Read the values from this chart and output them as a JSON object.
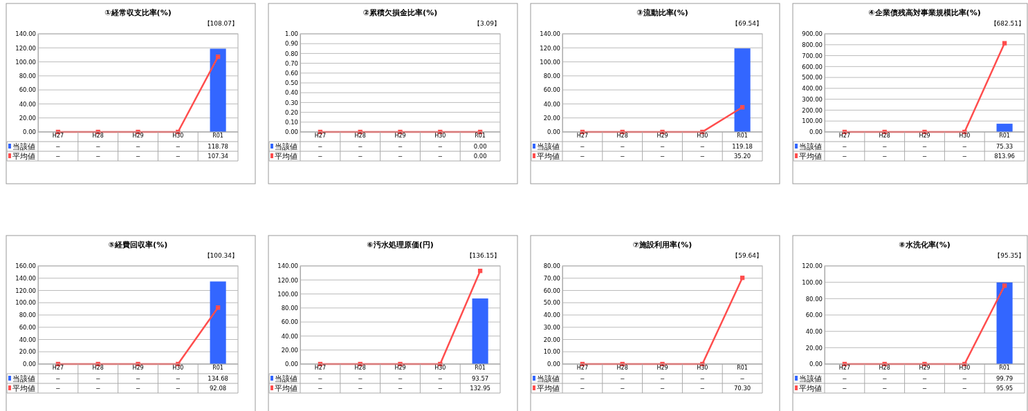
{
  "chart_data": [
    {
      "type": "bar",
      "legend": "bottom left",
      "title": "①経常収支比率(%)",
      "annotations": [
        "【108.07】"
      ],
      "categories": [
        "H27",
        "H28",
        "H29",
        "H30",
        "R01"
      ],
      "ylim": [
        0,
        140
      ],
      "yticks": [
        {
          "value": 0,
          "label": "0.00"
        },
        {
          "value": 20,
          "label": "20.00"
        },
        {
          "value": 40,
          "label": "40.00"
        },
        {
          "value": 60,
          "label": "60.00"
        },
        {
          "value": 80,
          "label": "80.00"
        },
        {
          "value": 100,
          "label": "100.00"
        },
        {
          "value": 120,
          "label": "120.00"
        },
        {
          "value": 140,
          "label": "140.00"
        }
      ],
      "grid": "y",
      "series": [
        {
          "name": "当該値",
          "type": "bar",
          "color": "#3366ff",
          "values": [
            null,
            null,
            null,
            null,
            118.78
          ],
          "value_labels": [
            "−",
            "−",
            "−",
            "−",
            "118.78"
          ]
        },
        {
          "name": "平均値",
          "type": "line",
          "color": "#ff4d4d",
          "marker": "square",
          "values": [
            0,
            0,
            0,
            0,
            107.34
          ],
          "value_labels": [
            "−",
            "−",
            "−",
            "−",
            "107.34"
          ]
        }
      ]
    },
    {
      "type": "bar",
      "legend": "bottom left",
      "title": "②累積欠損金比率(%)",
      "annotations": [
        "【3.09】"
      ],
      "categories": [
        "H27",
        "H28",
        "H29",
        "H30",
        "R01"
      ],
      "ylim": [
        0,
        1
      ],
      "yticks": [
        {
          "value": 0,
          "label": "0.00"
        },
        {
          "value": 0.1,
          "label": "0.10"
        },
        {
          "value": 0.2,
          "label": "0.20"
        },
        {
          "value": 0.3,
          "label": "0.30"
        },
        {
          "value": 0.4,
          "label": "0.40"
        },
        {
          "value": 0.5,
          "label": "0.50"
        },
        {
          "value": 0.6,
          "label": "0.60"
        },
        {
          "value": 0.7,
          "label": "0.70"
        },
        {
          "value": 0.8,
          "label": "0.80"
        },
        {
          "value": 0.9,
          "label": "0.90"
        },
        {
          "value": 1,
          "label": "1.00"
        }
      ],
      "grid": "y",
      "series": [
        {
          "name": "当該値",
          "type": "bar",
          "color": "#3366ff",
          "values": [
            null,
            null,
            null,
            null,
            0
          ],
          "value_labels": [
            "−",
            "−",
            "−",
            "−",
            "0.00"
          ]
        },
        {
          "name": "平均値",
          "type": "line",
          "color": "#ff4d4d",
          "marker": "square",
          "values": [
            0,
            0,
            0,
            0,
            0
          ],
          "value_labels": [
            "−",
            "−",
            "−",
            "−",
            "0.00"
          ]
        }
      ]
    },
    {
      "type": "bar",
      "legend": "bottom left",
      "title": "③流動比率(%)",
      "annotations": [
        "【69.54】"
      ],
      "categories": [
        "H27",
        "H28",
        "H29",
        "H30",
        "R01"
      ],
      "ylim": [
        0,
        140
      ],
      "yticks": [
        {
          "value": 0,
          "label": "0.00"
        },
        {
          "value": 20,
          "label": "20.00"
        },
        {
          "value": 40,
          "label": "40.00"
        },
        {
          "value": 60,
          "label": "60.00"
        },
        {
          "value": 80,
          "label": "80.00"
        },
        {
          "value": 100,
          "label": "100.00"
        },
        {
          "value": 120,
          "label": "120.00"
        },
        {
          "value": 140,
          "label": "140.00"
        }
      ],
      "grid": "y",
      "series": [
        {
          "name": "当該値",
          "type": "bar",
          "color": "#3366ff",
          "values": [
            null,
            null,
            null,
            null,
            119.18
          ],
          "value_labels": [
            "−",
            "−",
            "−",
            "−",
            "119.18"
          ]
        },
        {
          "name": "平均値",
          "type": "line",
          "color": "#ff4d4d",
          "marker": "square",
          "values": [
            0,
            0,
            0,
            0,
            35.2
          ],
          "value_labels": [
            "−",
            "−",
            "−",
            "−",
            "35.20"
          ]
        }
      ]
    },
    {
      "type": "bar",
      "legend": "bottom left",
      "title": "④企業債残高対事業規模比率(%)",
      "annotations": [
        "【682.51】"
      ],
      "categories": [
        "H27",
        "H28",
        "H29",
        "H30",
        "R01"
      ],
      "ylim": [
        0,
        900
      ],
      "yticks": [
        {
          "value": 0,
          "label": "0.00"
        },
        {
          "value": 100,
          "label": "100.00"
        },
        {
          "value": 200,
          "label": "200.00"
        },
        {
          "value": 300,
          "label": "300.00"
        },
        {
          "value": 400,
          "label": "400.00"
        },
        {
          "value": 500,
          "label": "500.00"
        },
        {
          "value": 600,
          "label": "600.00"
        },
        {
          "value": 700,
          "label": "700.00"
        },
        {
          "value": 800,
          "label": "800.00"
        },
        {
          "value": 900,
          "label": "900.00"
        }
      ],
      "grid": "y",
      "series": [
        {
          "name": "当該値",
          "type": "bar",
          "color": "#3366ff",
          "values": [
            null,
            null,
            null,
            null,
            75.33
          ],
          "value_labels": [
            "−",
            "−",
            "−",
            "−",
            "75.33"
          ]
        },
        {
          "name": "平均値",
          "type": "line",
          "color": "#ff4d4d",
          "marker": "square",
          "values": [
            0,
            0,
            0,
            0,
            813.96
          ],
          "value_labels": [
            "−",
            "−",
            "−",
            "−",
            "813.96"
          ]
        }
      ]
    },
    {
      "type": "bar",
      "legend": "bottom left",
      "title": "⑤経費回収率(%)",
      "annotations": [
        "【100.34】"
      ],
      "categories": [
        "H27",
        "H28",
        "H29",
        "H30",
        "R01"
      ],
      "ylim": [
        0,
        160
      ],
      "yticks": [
        {
          "value": 0,
          "label": "0.00"
        },
        {
          "value": 20,
          "label": "20.00"
        },
        {
          "value": 40,
          "label": "40.00"
        },
        {
          "value": 60,
          "label": "60.00"
        },
        {
          "value": 80,
          "label": "80.00"
        },
        {
          "value": 100,
          "label": "100.00"
        },
        {
          "value": 120,
          "label": "120.00"
        },
        {
          "value": 140,
          "label": "140.00"
        },
        {
          "value": 160,
          "label": "160.00"
        }
      ],
      "grid": "y",
      "series": [
        {
          "name": "当該値",
          "type": "bar",
          "color": "#3366ff",
          "values": [
            null,
            null,
            null,
            null,
            134.68
          ],
          "value_labels": [
            "−",
            "−",
            "−",
            "−",
            "134.68"
          ]
        },
        {
          "name": "平均値",
          "type": "line",
          "color": "#ff4d4d",
          "marker": "square",
          "values": [
            0,
            0,
            0,
            0,
            92.08
          ],
          "value_labels": [
            "−",
            "−",
            "−",
            "−",
            "92.08"
          ]
        }
      ]
    },
    {
      "type": "bar",
      "legend": "bottom left",
      "title": "⑥汚水処理原価(円)",
      "annotations": [
        "【136.15】"
      ],
      "categories": [
        "H27",
        "H28",
        "H29",
        "H30",
        "R01"
      ],
      "ylim": [
        0,
        140
      ],
      "yticks": [
        {
          "value": 0,
          "label": "0.00"
        },
        {
          "value": 20,
          "label": "20.00"
        },
        {
          "value": 40,
          "label": "40.00"
        },
        {
          "value": 60,
          "label": "60.00"
        },
        {
          "value": 80,
          "label": "80.00"
        },
        {
          "value": 100,
          "label": "100.00"
        },
        {
          "value": 120,
          "label": "120.00"
        },
        {
          "value": 140,
          "label": "140.00"
        }
      ],
      "grid": "y",
      "series": [
        {
          "name": "当該値",
          "type": "bar",
          "color": "#3366ff",
          "values": [
            null,
            null,
            null,
            null,
            93.57
          ],
          "value_labels": [
            "−",
            "−",
            "−",
            "−",
            "93.57"
          ]
        },
        {
          "name": "平均値",
          "type": "line",
          "color": "#ff4d4d",
          "marker": "square",
          "values": [
            0,
            0,
            0,
            0,
            132.95
          ],
          "value_labels": [
            "−",
            "−",
            "−",
            "−",
            "132.95"
          ]
        }
      ]
    },
    {
      "type": "bar",
      "legend": "bottom left",
      "title": "⑦施設利用率(%)",
      "annotations": [
        "【59.64】"
      ],
      "categories": [
        "H27",
        "H28",
        "H29",
        "H30",
        "R01"
      ],
      "ylim": [
        0,
        80
      ],
      "yticks": [
        {
          "value": 0,
          "label": "0.00"
        },
        {
          "value": 10,
          "label": "10.00"
        },
        {
          "value": 20,
          "label": "20.00"
        },
        {
          "value": 30,
          "label": "30.00"
        },
        {
          "value": 40,
          "label": "40.00"
        },
        {
          "value": 50,
          "label": "50.00"
        },
        {
          "value": 60,
          "label": "60.00"
        },
        {
          "value": 70,
          "label": "70.00"
        },
        {
          "value": 80,
          "label": "80.00"
        }
      ],
      "grid": "y",
      "series": [
        {
          "name": "当該値",
          "type": "bar",
          "color": "#3366ff",
          "values": [
            null,
            null,
            null,
            null,
            null
          ],
          "value_labels": [
            "−",
            "−",
            "−",
            "−",
            "−"
          ]
        },
        {
          "name": "平均値",
          "type": "line",
          "color": "#ff4d4d",
          "marker": "square",
          "values": [
            0,
            0,
            0,
            0,
            70.3
          ],
          "value_labels": [
            "−",
            "−",
            "−",
            "−",
            "70.30"
          ]
        }
      ]
    },
    {
      "type": "bar",
      "legend": "bottom left",
      "title": "⑧水洗化率(%)",
      "annotations": [
        "【95.35】"
      ],
      "categories": [
        "H27",
        "H28",
        "H29",
        "H30",
        "R01"
      ],
      "ylim": [
        0,
        120
      ],
      "yticks": [
        {
          "value": 0,
          "label": "0.00"
        },
        {
          "value": 20,
          "label": "20.00"
        },
        {
          "value": 40,
          "label": "40.00"
        },
        {
          "value": 60,
          "label": "60.00"
        },
        {
          "value": 80,
          "label": "80.00"
        },
        {
          "value": 100,
          "label": "100.00"
        },
        {
          "value": 120,
          "label": "120.00"
        }
      ],
      "grid": "y",
      "series": [
        {
          "name": "当該値",
          "type": "bar",
          "color": "#3366ff",
          "values": [
            null,
            null,
            null,
            null,
            99.79
          ],
          "value_labels": [
            "−",
            "−",
            "−",
            "−",
            "99.79"
          ]
        },
        {
          "name": "平均値",
          "type": "line",
          "color": "#ff4d4d",
          "marker": "square",
          "values": [
            0,
            0,
            0,
            0,
            95.95
          ],
          "value_labels": [
            "−",
            "−",
            "−",
            "−",
            "95.95"
          ]
        }
      ]
    }
  ]
}
